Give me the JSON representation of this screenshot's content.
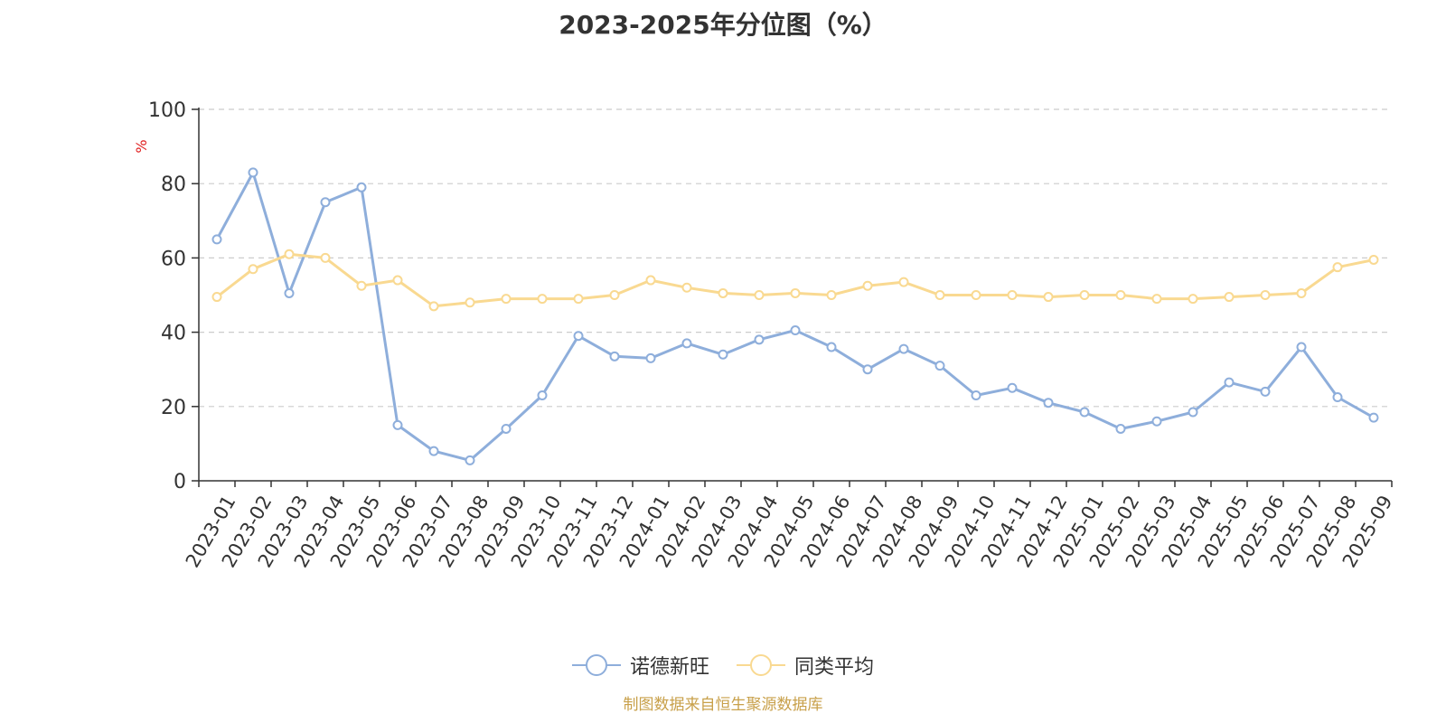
{
  "chart_data": {
    "type": "line",
    "title": "2023-2025年分位图（%）",
    "ylabel": "%",
    "ylim": [
      0,
      100
    ],
    "yticks": [
      0,
      20,
      40,
      60,
      80,
      100
    ],
    "grid": true,
    "legend_position": "bottom",
    "categories": [
      "2023-01",
      "2023-02",
      "2023-03",
      "2023-04",
      "2023-05",
      "2023-06",
      "2023-07",
      "2023-08",
      "2023-09",
      "2023-10",
      "2023-11",
      "2023-12",
      "2024-01",
      "2024-02",
      "2024-03",
      "2024-04",
      "2024-05",
      "2024-06",
      "2024-07",
      "2024-08",
      "2024-09",
      "2024-10",
      "2024-11",
      "2024-12",
      "2025-01",
      "2025-02",
      "2025-03",
      "2025-04",
      "2025-05",
      "2025-06",
      "2025-07",
      "2025-08",
      "2025-09"
    ],
    "series": [
      {
        "name": "诺德新旺",
        "color": "#8eaedb",
        "values": [
          65,
          83,
          50.5,
          75,
          79,
          15,
          8,
          5.5,
          14,
          23,
          39,
          33.5,
          33,
          37,
          34,
          38,
          40.5,
          36,
          30,
          35.5,
          31,
          23,
          25,
          21,
          18.5,
          14,
          16,
          18.5,
          26.5,
          24,
          36,
          22.5,
          17
        ]
      },
      {
        "name": "同类平均",
        "color": "#f9d991",
        "values": [
          49.5,
          57,
          61,
          60,
          52.5,
          54,
          47,
          48,
          49,
          49,
          49,
          50,
          54,
          52,
          50.5,
          50,
          50.5,
          50,
          52.5,
          53.5,
          50,
          50,
          50,
          49.5,
          50,
          50,
          49,
          49,
          49.5,
          50,
          50.5,
          57.5,
          59.5
        ]
      }
    ]
  },
  "source_text": "制图数据来自恒生聚源数据库",
  "colors": {
    "axis": "#333333",
    "grid": "#cccccc",
    "ylabel": "#e02020",
    "source": "#c8a04a"
  }
}
